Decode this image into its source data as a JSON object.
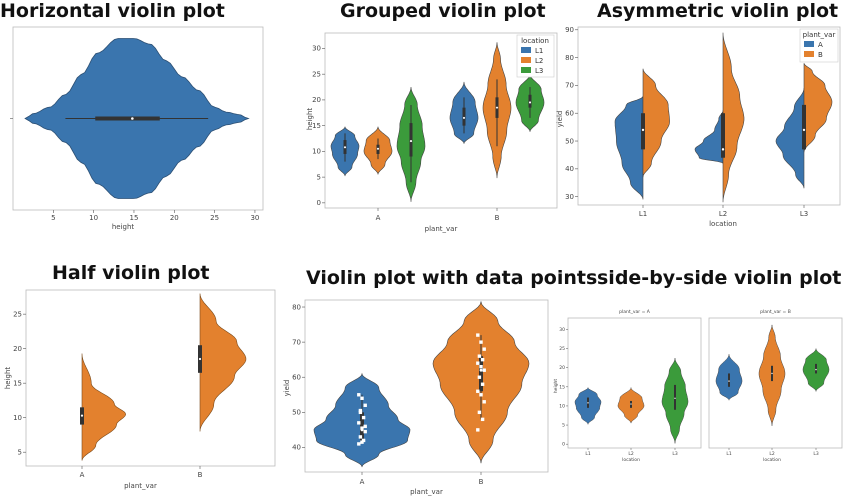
{
  "colors": {
    "blue": "#3a75ae",
    "orange": "#e3812e",
    "green": "#3b9b3b"
  },
  "chart_data": [
    {
      "id": "p1",
      "type": "violin",
      "title": "Horizontal violin plot",
      "orientation": "horizontal",
      "xlabel": "height",
      "ylabel": "",
      "xlim": [
        0,
        31
      ],
      "xticks": [
        5,
        10,
        15,
        20,
        25,
        30
      ],
      "groups": [
        {
          "name": "",
          "color": "#3a75ae",
          "median": 14.8,
          "q1": 10.2,
          "q3": 18.2,
          "whisker_low": 6.5,
          "whisker_high": 24.2,
          "density": [
            [
              1.5,
              0.0
            ],
            [
              2.5,
              0.06
            ],
            [
              4.5,
              0.14
            ],
            [
              6.5,
              0.3
            ],
            [
              8.5,
              0.55
            ],
            [
              10.5,
              0.82
            ],
            [
              13,
              1.0
            ],
            [
              15,
              1.0
            ],
            [
              17,
              0.93
            ],
            [
              19,
              0.72
            ],
            [
              21,
              0.52
            ],
            [
              23,
              0.35
            ],
            [
              25,
              0.14
            ],
            [
              26.5,
              0.08
            ],
            [
              28,
              0.05
            ],
            [
              29.2,
              0.0
            ]
          ]
        }
      ]
    },
    {
      "id": "p2",
      "type": "violin",
      "title": "Grouped violin plot",
      "xlabel": "plant_var",
      "ylabel": "height",
      "ylim": [
        -1,
        33
      ],
      "yticks": [
        0,
        5,
        10,
        15,
        20,
        25,
        30
      ],
      "categories": [
        "A",
        "B"
      ],
      "legend": {
        "title": "location",
        "entries": [
          "L1",
          "L2",
          "L3"
        ],
        "position": "top-right"
      },
      "groups": [
        {
          "category": "A",
          "series": "L1",
          "color": "#3a75ae",
          "median": 10.8,
          "q1": 9.5,
          "q3": 12.2,
          "whisker_low": 8,
          "whisker_high": 13.5,
          "density": [
            [
              5.2,
              0.0
            ],
            [
              7,
              0.5
            ],
            [
              9.5,
              0.9
            ],
            [
              11,
              1.0
            ],
            [
              13,
              0.7
            ],
            [
              14.8,
              0.0
            ]
          ]
        },
        {
          "category": "A",
          "series": "L2",
          "color": "#e3812e",
          "median": 10.5,
          "q1": 9.5,
          "q3": 11.3,
          "whisker_low": 8.5,
          "whisker_high": 12.5,
          "density": [
            [
              5.5,
              0.0
            ],
            [
              7.5,
              0.5
            ],
            [
              10,
              1.0
            ],
            [
              12,
              0.85
            ],
            [
              14.8,
              0.0
            ]
          ]
        },
        {
          "category": "A",
          "series": "L3",
          "color": "#3b9b3b",
          "median": 12,
          "q1": 9,
          "q3": 15.5,
          "whisker_low": 4,
          "whisker_high": 19,
          "density": [
            [
              0.2,
              0.0
            ],
            [
              4,
              0.35
            ],
            [
              8,
              0.7
            ],
            [
              11,
              1.0
            ],
            [
              15,
              0.8
            ],
            [
              19,
              0.45
            ],
            [
              22.5,
              0.0
            ]
          ]
        },
        {
          "category": "B",
          "series": "L1",
          "color": "#3a75ae",
          "median": 16.5,
          "q1": 15,
          "q3": 18.5,
          "whisker_low": 13.5,
          "whisker_high": 20.5,
          "density": [
            [
              11.5,
              0.0
            ],
            [
              13.5,
              0.7
            ],
            [
              16.5,
              1.0
            ],
            [
              19.5,
              0.8
            ],
            [
              23.5,
              0.0
            ]
          ]
        },
        {
          "category": "B",
          "series": "L2",
          "color": "#e3812e",
          "median": 18.5,
          "q1": 16.5,
          "q3": 20.5,
          "whisker_low": 11,
          "whisker_high": 24,
          "density": [
            [
              4.8,
              0.0
            ],
            [
              9,
              0.3
            ],
            [
              14,
              0.7
            ],
            [
              18.5,
              1.0
            ],
            [
              23,
              0.65
            ],
            [
              28,
              0.25
            ],
            [
              31.2,
              0.0
            ]
          ]
        },
        {
          "category": "B",
          "series": "L3",
          "color": "#3b9b3b",
          "median": 19.5,
          "q1": 18.5,
          "q3": 21,
          "whisker_low": 16.5,
          "whisker_high": 22.5,
          "density": [
            [
              13.8,
              0.0
            ],
            [
              16,
              0.6
            ],
            [
              19.5,
              1.0
            ],
            [
              22,
              0.8
            ],
            [
              25,
              0.0
            ]
          ]
        }
      ]
    },
    {
      "id": "p3",
      "type": "violin",
      "title": "Asymmetric violin plot",
      "split": true,
      "xlabel": "location",
      "ylabel": "yield",
      "ylim": [
        27,
        91
      ],
      "yticks": [
        30,
        40,
        50,
        60,
        70,
        80,
        90
      ],
      "categories": [
        "L1",
        "L2",
        "L3"
      ],
      "legend": {
        "title": "plant_var",
        "entries": [
          "A",
          "B"
        ],
        "position": "top-right"
      },
      "groups": [
        {
          "category": "L1",
          "series": "A",
          "side": "left",
          "color": "#3a75ae",
          "median": 54,
          "q1": 47,
          "q3": 60,
          "density": [
            [
              29,
              0.0
            ],
            [
              35,
              0.45
            ],
            [
              42,
              0.75
            ],
            [
              50,
              0.95
            ],
            [
              57,
              1.0
            ],
            [
              63,
              0.6
            ],
            [
              66,
              0.0
            ]
          ]
        },
        {
          "category": "L1",
          "series": "B",
          "side": "right",
          "color": "#e3812e",
          "median": 54,
          "q1": 47,
          "q3": 60,
          "density": [
            [
              37,
              0.0
            ],
            [
              42,
              0.3
            ],
            [
              50,
              0.65
            ],
            [
              57,
              0.95
            ],
            [
              63,
              0.9
            ],
            [
              70,
              0.45
            ],
            [
              76,
              0.0
            ]
          ]
        },
        {
          "category": "L2",
          "series": "A",
          "side": "left",
          "color": "#3a75ae",
          "median": 47,
          "q1": 44,
          "q3": 60,
          "density": [
            [
              42,
              0.0
            ],
            [
              44,
              0.85
            ],
            [
              47,
              1.0
            ],
            [
              50,
              0.7
            ],
            [
              54,
              0.3
            ],
            [
              58,
              0.15
            ],
            [
              61,
              0.0
            ]
          ]
        },
        {
          "category": "L2",
          "series": "B",
          "side": "right",
          "color": "#e3812e",
          "median": 47,
          "q1": 44,
          "q3": 60,
          "density": [
            [
              28,
              0.0
            ],
            [
              38,
              0.2
            ],
            [
              48,
              0.5
            ],
            [
              58,
              0.75
            ],
            [
              66,
              0.6
            ],
            [
              76,
              0.3
            ],
            [
              89,
              0.0
            ]
          ]
        },
        {
          "category": "L3",
          "series": "A",
          "side": "left",
          "color": "#3a75ae",
          "median": 54,
          "q1": 47,
          "q3": 63,
          "density": [
            [
              33,
              0.0
            ],
            [
              38,
              0.3
            ],
            [
              45,
              0.75
            ],
            [
              50,
              1.0
            ],
            [
              55,
              0.7
            ],
            [
              62,
              0.35
            ],
            [
              69,
              0.0
            ]
          ]
        },
        {
          "category": "L3",
          "series": "B",
          "side": "right",
          "color": "#e3812e",
          "median": 54,
          "q1": 47,
          "q3": 63,
          "density": [
            [
              46,
              0.0
            ],
            [
              52,
              0.4
            ],
            [
              58,
              0.8
            ],
            [
              64,
              1.0
            ],
            [
              70,
              0.75
            ],
            [
              75,
              0.3
            ],
            [
              78,
              0.0
            ]
          ]
        }
      ]
    },
    {
      "id": "p4",
      "type": "violin",
      "title": "Half violin plot",
      "half": true,
      "xlabel": "plant_var",
      "ylabel": "height",
      "ylim": [
        3,
        28.5
      ],
      "yticks": [
        5,
        10,
        15,
        20,
        25
      ],
      "categories": [
        "A",
        "B"
      ],
      "groups": [
        {
          "category": "A",
          "color": "#e3812e",
          "median": 10.3,
          "q1": 9,
          "q3": 11.5,
          "density": [
            [
              3.8,
              0.0
            ],
            [
              6,
              0.3
            ],
            [
              9,
              0.75
            ],
            [
              10.5,
              0.95
            ],
            [
              12,
              0.7
            ],
            [
              15,
              0.2
            ],
            [
              19.3,
              0.0
            ]
          ]
        },
        {
          "category": "B",
          "color": "#e3812e",
          "median": 18.5,
          "q1": 16.5,
          "q3": 20.5,
          "density": [
            [
              8,
              0.0
            ],
            [
              12,
              0.3
            ],
            [
              16,
              0.75
            ],
            [
              18.5,
              1.0
            ],
            [
              21,
              0.8
            ],
            [
              24,
              0.35
            ],
            [
              28,
              0.0
            ]
          ]
        }
      ]
    },
    {
      "id": "p5",
      "type": "violin",
      "title": "Violin plot with data points",
      "xlabel": "plant_var",
      "ylabel": "yield",
      "ylim": [
        33,
        82
      ],
      "yticks": [
        40,
        50,
        60,
        70,
        80
      ],
      "categories": [
        "A",
        "B"
      ],
      "groups": [
        {
          "category": "A",
          "color": "#3a75ae",
          "median": 45,
          "q1": 42,
          "q3": 50,
          "whisker_low": 41,
          "whisker_high": 55,
          "density": [
            [
              34.5,
              0.0
            ],
            [
              38,
              0.35
            ],
            [
              42,
              0.95
            ],
            [
              45,
              1.0
            ],
            [
              48,
              0.75
            ],
            [
              52,
              0.55
            ],
            [
              57,
              0.35
            ],
            [
              61,
              0.0
            ]
          ],
          "points": [
            55,
            54,
            52,
            50,
            48.5,
            47,
            45.5,
            44.5,
            43,
            42,
            41,
            41.5,
            46,
            50.5
          ]
        },
        {
          "category": "B",
          "color": "#e3812e",
          "median": 62,
          "q1": 56,
          "q3": 66,
          "whisker_low": 48,
          "whisker_high": 72,
          "density": [
            [
              35.5,
              0.0
            ],
            [
              42,
              0.25
            ],
            [
              50,
              0.55
            ],
            [
              58,
              0.85
            ],
            [
              64,
              1.0
            ],
            [
              70,
              0.7
            ],
            [
              76,
              0.35
            ],
            [
              81.5,
              0.0
            ]
          ],
          "points": [
            72,
            70,
            68,
            66,
            65,
            64,
            63,
            62,
            60,
            58,
            56,
            55,
            53,
            50,
            48,
            45
          ]
        }
      ]
    },
    {
      "id": "p6",
      "type": "violin",
      "title": "side-by-side violin plot",
      "facets": [
        "plant_var = A",
        "plant_var = B"
      ],
      "xlabel": "location",
      "ylabel": "height",
      "ylim": [
        -1,
        33
      ],
      "yticks": [
        0,
        5,
        10,
        15,
        20,
        25,
        30
      ],
      "categories": [
        "L1",
        "L2",
        "L3"
      ],
      "groups": [
        {
          "facet": 0,
          "category": "L1",
          "color": "#3a75ae",
          "median": 10.8,
          "q1": 9.5,
          "q3": 12.2,
          "density": [
            [
              5.2,
              0.0
            ],
            [
              7,
              0.5
            ],
            [
              9.5,
              0.9
            ],
            [
              11,
              1.0
            ],
            [
              13,
              0.7
            ],
            [
              14.8,
              0.0
            ]
          ]
        },
        {
          "facet": 0,
          "category": "L2",
          "color": "#e3812e",
          "median": 10.5,
          "q1": 9.5,
          "q3": 11.3,
          "density": [
            [
              5.5,
              0.0
            ],
            [
              7.5,
              0.5
            ],
            [
              10,
              1.0
            ],
            [
              12,
              0.85
            ],
            [
              14.8,
              0.0
            ]
          ]
        },
        {
          "facet": 0,
          "category": "L3",
          "color": "#3b9b3b",
          "median": 12,
          "q1": 9,
          "q3": 15.5,
          "density": [
            [
              0.2,
              0.0
            ],
            [
              4,
              0.35
            ],
            [
              8,
              0.7
            ],
            [
              11,
              1.0
            ],
            [
              15,
              0.8
            ],
            [
              19,
              0.45
            ],
            [
              22.5,
              0.0
            ]
          ]
        },
        {
          "facet": 1,
          "category": "L1",
          "color": "#3a75ae",
          "median": 16.5,
          "q1": 15,
          "q3": 18.5,
          "density": [
            [
              11.5,
              0.0
            ],
            [
              13.5,
              0.7
            ],
            [
              16.5,
              1.0
            ],
            [
              19.5,
              0.8
            ],
            [
              23.5,
              0.0
            ]
          ]
        },
        {
          "facet": 1,
          "category": "L2",
          "color": "#e3812e",
          "median": 18.5,
          "q1": 16.5,
          "q3": 20.5,
          "density": [
            [
              4.8,
              0.0
            ],
            [
              9,
              0.3
            ],
            [
              14,
              0.7
            ],
            [
              18.5,
              1.0
            ],
            [
              23,
              0.65
            ],
            [
              28,
              0.25
            ],
            [
              31.2,
              0.0
            ]
          ]
        },
        {
          "facet": 1,
          "category": "L3",
          "color": "#3b9b3b",
          "median": 19.5,
          "q1": 18.5,
          "q3": 21,
          "density": [
            [
              13.8,
              0.0
            ],
            [
              16,
              0.6
            ],
            [
              19.5,
              1.0
            ],
            [
              22,
              0.8
            ],
            [
              25,
              0.0
            ]
          ]
        }
      ]
    }
  ]
}
